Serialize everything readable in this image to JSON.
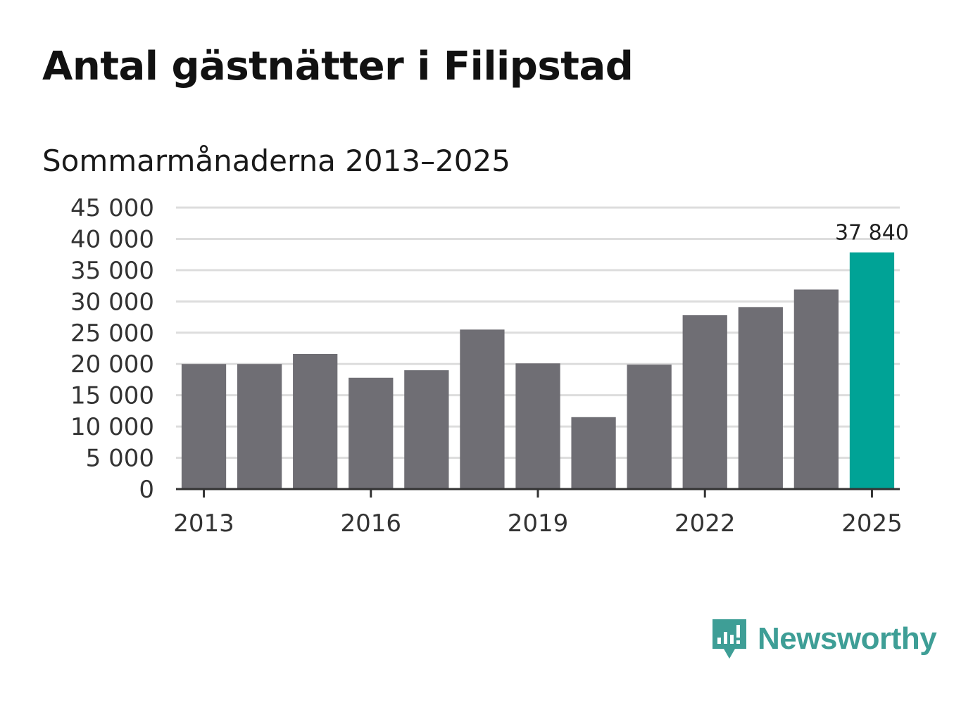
{
  "title": "Antal gästnätter i Filipstad",
  "subtitle": "Sommarmånaderna 2013–2025",
  "brand": {
    "name": "Newsworthy",
    "logo_icon": "newsworthy-logo-icon",
    "color": "#3e9e96"
  },
  "colors": {
    "bar": "#6f6e74",
    "highlight": "#00a396",
    "grid": "#dddddd",
    "axis": "#333333"
  },
  "chart_data": {
    "type": "bar",
    "title": "Antal gästnätter i Filipstad",
    "subtitle": "Sommarmånaderna 2013–2025",
    "categories": [
      "2013",
      "2014",
      "2015",
      "2016",
      "2017",
      "2018",
      "2019",
      "2020",
      "2021",
      "2022",
      "2023",
      "2024",
      "2025"
    ],
    "values": [
      20000,
      20000,
      21600,
      17800,
      19000,
      25500,
      20100,
      11500,
      19900,
      27800,
      29100,
      31900,
      37840
    ],
    "highlight_index": 12,
    "data_labels": [
      {
        "index": 12,
        "text": "37 840"
      }
    ],
    "x_tick_labels": [
      "2013",
      "2016",
      "2019",
      "2022",
      "2025"
    ],
    "y_tick_labels": [
      "0",
      "5 000",
      "10 000",
      "15 000",
      "20 000",
      "25 000",
      "30 000",
      "35 000",
      "40 000",
      "45 000"
    ],
    "y_ticks": [
      0,
      5000,
      10000,
      15000,
      20000,
      25000,
      30000,
      35000,
      40000,
      45000
    ],
    "ylim": [
      0,
      45000
    ],
    "xlabel": "",
    "ylabel": "",
    "grid": true,
    "legend": "none"
  }
}
